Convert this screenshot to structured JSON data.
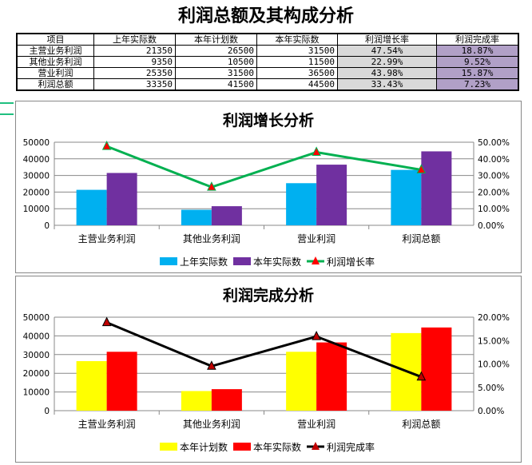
{
  "title": "利润总额及其构成分析",
  "table": {
    "headers": [
      "项目",
      "上年实际数",
      "本年计划数",
      "本年实际数",
      "利润增长率",
      "利润完成率"
    ],
    "rows": [
      [
        "主营业务利润",
        "21350",
        "26500",
        "31500",
        "47.54%",
        "18.87%"
      ],
      [
        "其他业务利润",
        "9350",
        "10500",
        "11500",
        "22.99%",
        "9.52%"
      ],
      [
        "营业利润",
        "25350",
        "31500",
        "36500",
        "43.98%",
        "15.87%"
      ],
      [
        "利润总额",
        "33350",
        "41500",
        "44500",
        "33.43%",
        "7.23%"
      ]
    ]
  },
  "chart_data": [
    {
      "type": "bar",
      "title": "利润增长分析",
      "categories": [
        "主营业务利润",
        "其他业务利润",
        "营业利润",
        "利润总额"
      ],
      "series": [
        {
          "name": "上年实际数",
          "values": [
            21350,
            9350,
            25350,
            33350
          ],
          "color": "#00b0f0"
        },
        {
          "name": "本年实际数",
          "values": [
            31500,
            11500,
            36500,
            44500
          ],
          "color": "#7030a0"
        },
        {
          "name": "利润增长率",
          "type": "line",
          "axis": "right",
          "values": [
            47.54,
            22.99,
            43.98,
            33.43
          ],
          "color": "#00b050",
          "marker": "#ff0000"
        }
      ],
      "ylim": [
        0,
        50000
      ],
      "yticks": [
        "0",
        "10000",
        "20000",
        "30000",
        "40000",
        "50000"
      ],
      "y2lim": [
        0,
        50
      ],
      "y2ticks": [
        "0.00%",
        "10.00%",
        "20.00%",
        "30.00%",
        "40.00%",
        "50.00%"
      ],
      "grid": true,
      "legend": "bottom"
    },
    {
      "type": "bar",
      "title": "利润完成分析",
      "categories": [
        "主营业务利润",
        "其他业务利润",
        "营业利润",
        "利润总额"
      ],
      "series": [
        {
          "name": "本年计划数",
          "values": [
            26500,
            10500,
            31500,
            41500
          ],
          "color": "#ffff00"
        },
        {
          "name": "本年实际数",
          "values": [
            31500,
            11500,
            36500,
            44500
          ],
          "color": "#ff0000"
        },
        {
          "name": "利润完成率",
          "type": "line",
          "axis": "right",
          "values": [
            18.87,
            9.52,
            15.87,
            7.23
          ],
          "color": "#000000",
          "marker": "#c00000"
        }
      ],
      "ylim": [
        0,
        50000
      ],
      "yticks": [
        "0",
        "10000",
        "20000",
        "30000",
        "40000",
        "50000"
      ],
      "y2lim": [
        0,
        20
      ],
      "y2ticks": [
        "0.00%",
        "5.00%",
        "10.00%",
        "15.00%",
        "20.00%"
      ],
      "grid": true,
      "legend": "bottom"
    }
  ]
}
